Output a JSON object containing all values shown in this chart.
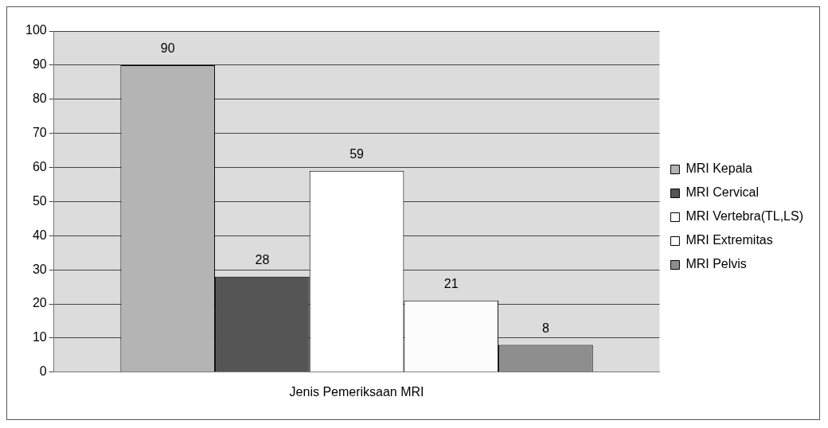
{
  "chart_data": {
    "type": "bar",
    "xlabel": "Jenis Pemeriksaan MRI",
    "categories": [
      null
    ],
    "series": [
      {
        "name": "MRI Kepala",
        "color": "#b4b4b4",
        "values": [
          90
        ]
      },
      {
        "name": "MRI Cervical",
        "color": "#555555",
        "values": [
          28
        ]
      },
      {
        "name": "MRI Vertebra(TL,LS)",
        "color": "#ffffff",
        "values": [
          59
        ]
      },
      {
        "name": "MRI Extremitas",
        "color": "#fcfcfc",
        "values": [
          21
        ]
      },
      {
        "name": "MRI Pelvis",
        "color": "#8e8e8e",
        "values": [
          8
        ]
      }
    ],
    "ylim": [
      0,
      100
    ],
    "yticks": [
      0,
      10,
      20,
      30,
      40,
      50,
      60,
      70,
      80,
      90,
      100
    ],
    "grid": "y",
    "legend": "right",
    "data_labels": true
  }
}
